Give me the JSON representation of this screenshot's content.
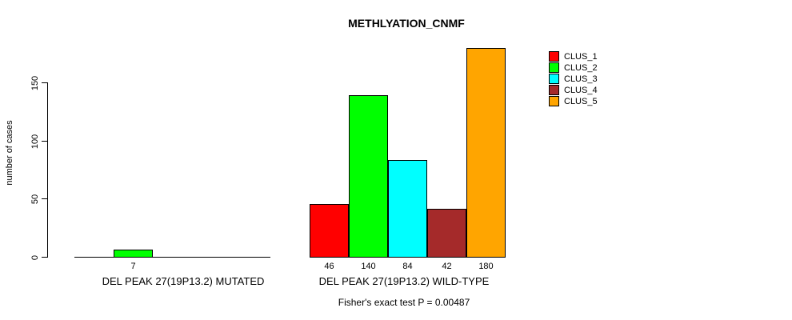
{
  "chart_data": {
    "type": "bar",
    "title": "METHLYATION_CNMF",
    "ylabel": "number of cases",
    "ylim": [
      0,
      150
    ],
    "yticks": [
      0,
      50,
      100,
      150
    ],
    "grid": false,
    "legend_position": "right",
    "clusters": [
      "CLUS_1",
      "CLUS_2",
      "CLUS_3",
      "CLUS_4",
      "CLUS_5"
    ],
    "colors": [
      "#FF0000",
      "#00FF00",
      "#00FFFF",
      "#A52A2A",
      "#FFA500"
    ],
    "groups": [
      {
        "label": "DEL PEAK 27(19P13.2) MUTATED",
        "values": [
          0,
          7,
          0,
          0,
          0
        ],
        "value_labels": [
          "",
          "7",
          "",
          "",
          ""
        ]
      },
      {
        "label": "DEL PEAK 27(19P13.2) WILD-TYPE",
        "values": [
          46,
          140,
          84,
          42,
          180
        ],
        "value_labels": [
          "46",
          "140",
          "84",
          "42",
          "180"
        ]
      }
    ],
    "annotation": "Fisher's exact test P = 0.00487"
  }
}
